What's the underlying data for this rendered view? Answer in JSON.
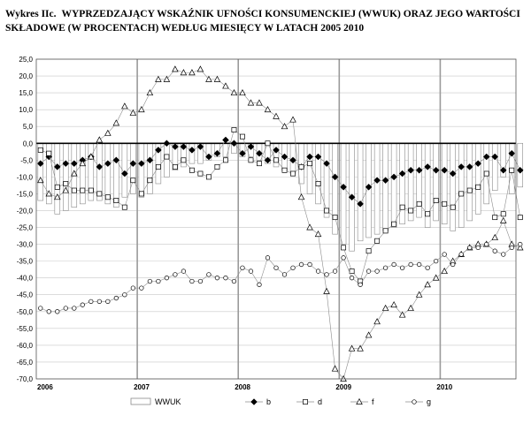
{
  "title": {
    "prefix": "Wykres IIc.",
    "line1": "WYPRZEDZAJĄCY WSKAŹNIK UFNOŚCI KONSUMENCKIEJ (WWUK) ORAZ JEGO WARTOŚCI",
    "line2": "SKŁADOWE (W PROCENTACH) WEDŁUG MIESIĘCY W LATACH 2005 2010"
  },
  "chart_data": {
    "type": "bar",
    "ylim": [
      -70,
      25
    ],
    "yticks": [
      "25,0",
      "20,0",
      "15,0",
      "10,0",
      "5,0",
      "0,0",
      "-5,0",
      "-10,0",
      "-15,0",
      "-20,0",
      "-25,0",
      "-30,0",
      "-35,0",
      "-40,0",
      "-45,0",
      "-50,0",
      "-55,0",
      "-60,0",
      "-65,0",
      "-70,0"
    ],
    "x_start_year": 2006,
    "year_labels": [
      "2006",
      "2007",
      "2008",
      "2009",
      "2010"
    ],
    "grid": true,
    "legend_position": "bottom",
    "series": [
      {
        "name": "WWUK",
        "kind": "bar",
        "values": [
          -17,
          -18,
          -21,
          -20,
          -19,
          -18,
          -17,
          -17,
          -18,
          -19,
          -16,
          -15,
          -16,
          -15,
          -12,
          -10,
          -8,
          -7,
          -6,
          -6,
          -5,
          -4,
          -4,
          -3,
          -4,
          -4,
          -5,
          -6,
          -7,
          -8,
          -9,
          -12,
          -15,
          -18,
          -22,
          -27,
          -30,
          -32,
          -29,
          -28,
          -27,
          -26,
          -25,
          -24,
          -23,
          -22,
          -25,
          -23,
          -24,
          -26,
          -25,
          -23,
          -21,
          -18,
          -14,
          -10,
          -15,
          -13
        ]
      },
      {
        "name": "b",
        "kind": "marker",
        "marker": "diamond",
        "values": [
          -6,
          -4,
          -7,
          -6,
          -6,
          -5,
          -4,
          -7,
          -6,
          -5,
          -9,
          -6,
          -6,
          -5,
          -2,
          0,
          -1,
          -1,
          -2,
          -1,
          -4,
          -3,
          1,
          0,
          -3,
          -1,
          -3,
          -5,
          -2,
          -4,
          -5,
          -7,
          -4,
          -4,
          -6,
          -10,
          -13,
          -16,
          -18,
          -13,
          -11,
          -11,
          -10,
          -9,
          -8,
          -8,
          -7,
          -8,
          -8,
          -9,
          -7,
          -7,
          -6,
          -4,
          -4,
          -8,
          -3,
          -8
        ]
      },
      {
        "name": "d",
        "kind": "marker",
        "marker": "square",
        "values": [
          -2,
          -3,
          -13,
          -12,
          -14,
          -14,
          -14,
          -15,
          -16,
          -17,
          -19,
          -11,
          -15,
          -11,
          -7,
          -4,
          -7,
          -5,
          -8,
          -9,
          -10,
          -7,
          -5,
          4,
          2,
          -5,
          -6,
          0,
          -5,
          -8,
          -9,
          -7,
          -6,
          -12,
          -20,
          -22,
          -31,
          -38,
          -41,
          -32,
          -29,
          -26,
          -24,
          -19,
          -20,
          -18,
          -21,
          -17,
          -18,
          -19,
          -15,
          -14,
          -13,
          -9,
          -22,
          -21,
          -8,
          -22
        ]
      },
      {
        "name": "f",
        "kind": "marker",
        "marker": "triangle",
        "values": [
          -11,
          -15,
          -16,
          -14,
          -9,
          -6,
          -4,
          1,
          3,
          6,
          11,
          9,
          10,
          15,
          19,
          19,
          22,
          21,
          21,
          22,
          19,
          19,
          17,
          15,
          15,
          12,
          12,
          10,
          8,
          5,
          7,
          -16,
          -25,
          -27,
          -44,
          -67,
          -70,
          -61,
          -61,
          -57,
          -53,
          -49,
          -48,
          -51,
          -49,
          -45,
          -42,
          -40,
          -38,
          -35,
          -33,
          -31,
          -30,
          -30,
          -28,
          -23,
          -30,
          -31
        ]
      },
      {
        "name": "g",
        "kind": "marker",
        "marker": "circle",
        "values": [
          -49,
          -50,
          -50,
          -49,
          -49,
          -48,
          -47,
          -47,
          -47,
          -46,
          -45,
          -43,
          -43,
          -41,
          -41,
          -40,
          -39,
          -38,
          -41,
          -41,
          -39,
          -40,
          -40,
          -41,
          -37,
          -38,
          -42,
          -34,
          -37,
          -39,
          -37,
          -36,
          -36,
          -38,
          -39,
          -38,
          -34,
          -40,
          -42,
          -38,
          -38,
          -37,
          -36,
          -37,
          -36,
          -36,
          -37,
          -35,
          -33,
          -36,
          -33,
          -31,
          -31,
          -30,
          -32,
          -33,
          -31,
          -30
        ]
      }
    ]
  }
}
